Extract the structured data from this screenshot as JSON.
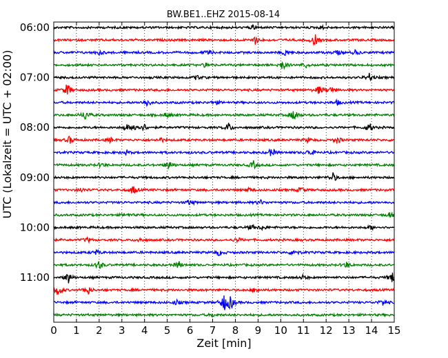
{
  "chart_data": {
    "type": "line",
    "title": "BW.BE1..EHZ 2015-08-14",
    "xlabel": "Zeit  [min]",
    "ylabel": "UTC (Lokalzeit = UTC + 02:00)",
    "xlim": [
      0,
      15
    ],
    "x_ticks": [
      "0",
      "1",
      "2",
      "3",
      "4",
      "5",
      "6",
      "7",
      "8",
      "9",
      "10",
      "11",
      "12",
      "13",
      "14",
      "15"
    ],
    "y_ticks": [
      "06:00",
      "07:00",
      "08:00",
      "09:00",
      "10:00",
      "11:00"
    ],
    "grid": true,
    "colors": [
      "#000000",
      "#ff0000",
      "#0000ff",
      "#008000"
    ],
    "series": [
      {
        "time": "06:00",
        "color": "#000000",
        "events": [
          {
            "t": 8.8,
            "amp": 0.3
          },
          {
            "t": 11.8,
            "amp": 0.2
          }
        ]
      },
      {
        "time": "06:15",
        "color": "#ff0000",
        "events": [
          {
            "t": 8.9,
            "amp": 0.6
          },
          {
            "t": 11.5,
            "amp": 0.8
          }
        ]
      },
      {
        "time": "06:30",
        "color": "#0000ff",
        "events": [
          {
            "t": 2.0,
            "amp": 0.3
          },
          {
            "t": 6.8,
            "amp": 0.3
          },
          {
            "t": 10.2,
            "amp": 0.4
          },
          {
            "t": 12.5,
            "amp": 0.3
          },
          {
            "t": 13.3,
            "amp": 0.3
          }
        ]
      },
      {
        "time": "06:45",
        "color": "#008000",
        "events": [
          {
            "t": 6.7,
            "amp": 0.3
          },
          {
            "t": 10.1,
            "amp": 0.7
          },
          {
            "t": 11.1,
            "amp": 0.3
          }
        ]
      },
      {
        "time": "07:00",
        "color": "#000000",
        "events": [
          {
            "t": 6.3,
            "amp": 0.3
          },
          {
            "t": 13.9,
            "amp": 0.5
          }
        ]
      },
      {
        "time": "07:15",
        "color": "#ff0000",
        "events": [
          {
            "t": 0.6,
            "amp": 0.9
          },
          {
            "t": 11.7,
            "amp": 0.6
          },
          {
            "t": 12.2,
            "amp": 0.5
          }
        ]
      },
      {
        "time": "07:30",
        "color": "#0000ff",
        "events": [
          {
            "t": 4.1,
            "amp": 0.6
          },
          {
            "t": 7.1,
            "amp": 0.3
          },
          {
            "t": 12.5,
            "amp": 0.3
          }
        ]
      },
      {
        "time": "07:45",
        "color": "#008000",
        "events": [
          {
            "t": 1.4,
            "amp": 0.7
          },
          {
            "t": 5.0,
            "amp": 0.4
          },
          {
            "t": 10.6,
            "amp": 0.9
          }
        ]
      },
      {
        "time": "08:00",
        "color": "#000000",
        "events": [
          {
            "t": 3.2,
            "amp": 0.4
          },
          {
            "t": 3.6,
            "amp": 0.6
          },
          {
            "t": 4.0,
            "amp": 0.4
          },
          {
            "t": 7.7,
            "amp": 0.6
          },
          {
            "t": 13.9,
            "amp": 0.6
          }
        ]
      },
      {
        "time": "08:15",
        "color": "#ff0000",
        "events": [
          {
            "t": 0.7,
            "amp": 0.5
          },
          {
            "t": 2.5,
            "amp": 0.3
          },
          {
            "t": 4.7,
            "amp": 0.3
          },
          {
            "t": 11.2,
            "amp": 0.3
          },
          {
            "t": 12.5,
            "amp": 0.5
          }
        ]
      },
      {
        "time": "08:30",
        "color": "#0000ff",
        "events": [
          {
            "t": 3.2,
            "amp": 0.3
          },
          {
            "t": 9.6,
            "amp": 0.6
          },
          {
            "t": 11.3,
            "amp": 0.5
          }
        ]
      },
      {
        "time": "08:45",
        "color": "#008000",
        "events": [
          {
            "t": 2.1,
            "amp": 0.3
          },
          {
            "t": 5.1,
            "amp": 0.6
          },
          {
            "t": 8.8,
            "amp": 0.5
          }
        ]
      },
      {
        "time": "09:00",
        "color": "#000000",
        "events": [
          {
            "t": 12.3,
            "amp": 0.6
          }
        ]
      },
      {
        "time": "09:15",
        "color": "#ff0000",
        "events": [
          {
            "t": 1.2,
            "amp": 0.3
          },
          {
            "t": 3.5,
            "amp": 0.6
          },
          {
            "t": 8.6,
            "amp": 0.3
          },
          {
            "t": 10.9,
            "amp": 0.4
          }
        ]
      },
      {
        "time": "09:30",
        "color": "#0000ff",
        "events": [
          {
            "t": 6.0,
            "amp": 0.4
          },
          {
            "t": 9.1,
            "amp": 0.3
          }
        ]
      },
      {
        "time": "09:45",
        "color": "#008000",
        "events": [
          {
            "t": 3.2,
            "amp": 0.3
          },
          {
            "t": 14.8,
            "amp": 0.3
          }
        ]
      },
      {
        "time": "10:00",
        "color": "#000000",
        "events": [
          {
            "t": 8.7,
            "amp": 0.3
          },
          {
            "t": 9.2,
            "amp": 0.3
          },
          {
            "t": 14.0,
            "amp": 0.3
          }
        ]
      },
      {
        "time": "10:15",
        "color": "#ff0000",
        "events": [
          {
            "t": 1.5,
            "amp": 0.3
          },
          {
            "t": 3.8,
            "amp": 0.3
          },
          {
            "t": 8.1,
            "amp": 0.3
          }
        ]
      },
      {
        "time": "10:30",
        "color": "#0000ff",
        "events": [
          {
            "t": 1.9,
            "amp": 0.3
          },
          {
            "t": 7.3,
            "amp": 0.4
          },
          {
            "t": 10.6,
            "amp": 0.5
          }
        ]
      },
      {
        "time": "10:45",
        "color": "#008000",
        "events": [
          {
            "t": 2.0,
            "amp": 0.6
          },
          {
            "t": 5.5,
            "amp": 0.5
          },
          {
            "t": 12.9,
            "amp": 0.4
          }
        ]
      },
      {
        "time": "11:00",
        "color": "#000000",
        "events": [
          {
            "t": 0.65,
            "amp": 0.8
          },
          {
            "t": 11.0,
            "amp": 0.3
          },
          {
            "t": 14.9,
            "amp": 0.7
          }
        ]
      },
      {
        "time": "11:15",
        "color": "#ff0000",
        "events": [
          {
            "t": 0.2,
            "amp": 0.8
          },
          {
            "t": 1.5,
            "amp": 0.6
          },
          {
            "t": 8.9,
            "amp": 0.4
          }
        ]
      },
      {
        "time": "11:30",
        "color": "#0000ff",
        "events": [
          {
            "t": 5.4,
            "amp": 0.3
          },
          {
            "t": 7.5,
            "amp": 1.1
          },
          {
            "t": 7.8,
            "amp": 0.9
          },
          {
            "t": 14.5,
            "amp": 0.4
          }
        ]
      },
      {
        "time": "11:45",
        "color": "#008000",
        "events": [
          {
            "t": 7.0,
            "amp": 0.2
          }
        ]
      }
    ]
  }
}
